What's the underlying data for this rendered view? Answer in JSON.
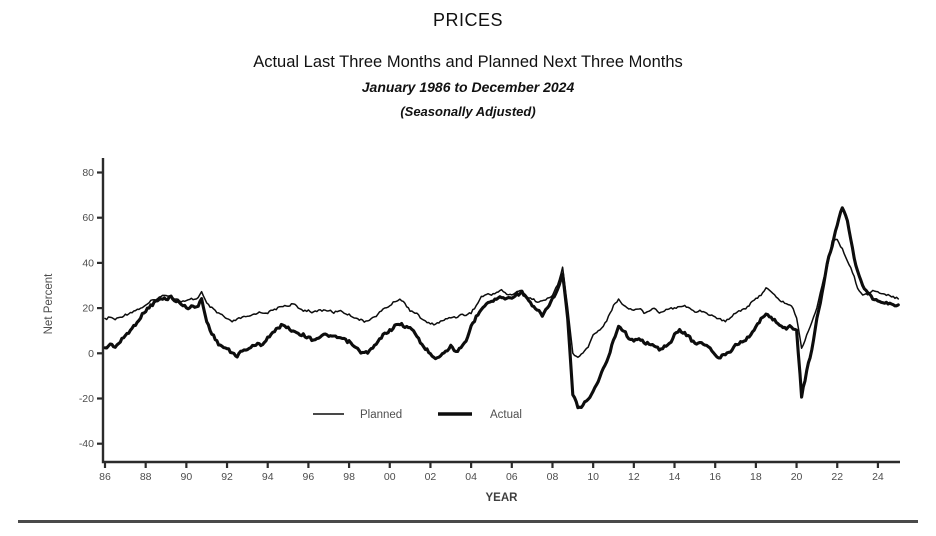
{
  "chart_data": {
    "type": "line",
    "title": "PRICES",
    "subtitle": "Actual Last Three Months and Planned Next Three Months",
    "period": "January 1986 to December 2024",
    "note": "(Seasonally Adjusted)",
    "xlabel": "YEAR",
    "ylabel": "Net Percent",
    "ylim": [
      -40,
      80
    ],
    "yticks": [
      80,
      60,
      40,
      20,
      0,
      -20,
      -40
    ],
    "xticks": [
      "86",
      "88",
      "90",
      "92",
      "94",
      "96",
      "98",
      "00",
      "02",
      "04",
      "06",
      "08",
      "10",
      "12",
      "14",
      "16",
      "18",
      "20",
      "22",
      "24"
    ],
    "x_start_year": 1986,
    "x_step_years": 0.25,
    "grid": false,
    "legend_position": "inside-bottom-center",
    "legend": [
      {
        "label": "Planned",
        "weight": "thin"
      },
      {
        "label": "Actual",
        "weight": "thick"
      }
    ],
    "colors": {
      "line": "#0d0d0d",
      "axis": "#2b2b2b",
      "tick_label": "#4d4d4d",
      "legend_text": "#4f4f4f",
      "divider": "#4a4a4a"
    },
    "series": [
      {
        "name": "Planned",
        "weight": "thin",
        "jitter": 1.0,
        "values": [
          15,
          16,
          15,
          16,
          17,
          18,
          19,
          20,
          21,
          23,
          24,
          25,
          26,
          25,
          24,
          23,
          23,
          24,
          24,
          27,
          22,
          20,
          18,
          17,
          15,
          14,
          15,
          16,
          16,
          17,
          18,
          18,
          18,
          19,
          20,
          21,
          21,
          22,
          20,
          19,
          19,
          18,
          19,
          19,
          19,
          18,
          19,
          18,
          17,
          16,
          15,
          14,
          15,
          16,
          18,
          20,
          21,
          23,
          24,
          22,
          19,
          18,
          16,
          14,
          13,
          13,
          14,
          15,
          16,
          16,
          17,
          17,
          18,
          21,
          25,
          26,
          26,
          27,
          28,
          26,
          26,
          27,
          28,
          25,
          24,
          23,
          23,
          24,
          26,
          30,
          38,
          20,
          0,
          -2,
          0,
          3,
          8,
          10,
          12,
          16,
          21,
          24,
          21,
          20,
          19,
          20,
          18,
          19,
          20,
          18,
          19,
          20,
          20,
          21,
          21,
          20,
          18,
          19,
          18,
          17,
          16,
          15,
          14,
          16,
          18,
          19,
          20,
          22,
          24,
          26,
          29,
          27,
          25,
          23,
          22,
          21,
          16,
          2,
          8,
          14,
          20,
          30,
          38,
          50,
          50,
          46,
          41,
          36,
          29,
          26,
          26,
          28,
          27,
          26,
          26,
          25,
          24
        ]
      },
      {
        "name": "Actual",
        "weight": "thick",
        "jitter": 1.5,
        "values": [
          2,
          4,
          3,
          5,
          8,
          10,
          13,
          16,
          19,
          21,
          23,
          24,
          24,
          25,
          23,
          22,
          20,
          21,
          20,
          24,
          14,
          9,
          5,
          3,
          2,
          0,
          -1,
          1,
          2,
          3,
          4,
          4,
          7,
          9,
          11,
          13,
          11,
          10,
          9,
          8,
          7,
          6,
          7,
          8,
          8,
          7,
          7,
          6,
          5,
          3,
          1,
          0,
          1,
          3,
          6,
          9,
          10,
          12,
          13,
          12,
          11,
          9,
          5,
          2,
          0,
          -2,
          -1,
          1,
          3,
          1,
          2,
          5,
          12,
          16,
          20,
          22,
          23,
          24,
          25,
          24,
          25,
          26,
          27,
          24,
          21,
          19,
          17,
          20,
          24,
          28,
          35,
          15,
          -18,
          -24,
          -23,
          -20,
          -17,
          -12,
          -7,
          -2,
          6,
          12,
          10,
          7,
          5,
          7,
          5,
          4,
          3,
          2,
          3,
          4,
          8,
          10,
          9,
          7,
          4,
          5,
          4,
          2,
          -1,
          -2,
          0,
          1,
          4,
          5,
          6,
          8,
          12,
          15,
          17,
          16,
          14,
          12,
          11,
          12,
          10,
          -19,
          -8,
          2,
          15,
          26,
          40,
          48,
          57,
          65,
          59,
          46,
          36,
          30,
          27,
          24,
          23,
          22,
          22,
          21,
          22
        ]
      }
    ]
  }
}
